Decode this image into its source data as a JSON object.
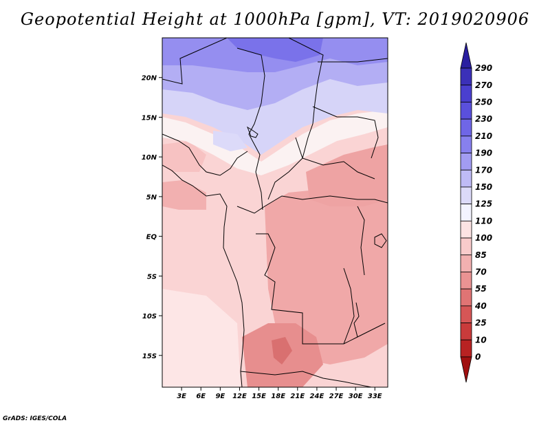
{
  "title": "Geopotential Height at 1000hPa [gpm], VT: 2019020906",
  "credit": "GrADS: IGES/COLA",
  "map": {
    "region": "Central Africa",
    "lon_range": [
      0,
      35
    ],
    "lat_range": [
      -19,
      25
    ],
    "lon_ticks": [
      "3E",
      "6E",
      "9E",
      "12E",
      "15E",
      "18E",
      "21E",
      "24E",
      "27E",
      "30E",
      "33E"
    ],
    "lat_ticks": [
      "20N",
      "15N",
      "10N",
      "5N",
      "EQ",
      "5S",
      "10S",
      "15S"
    ]
  },
  "colorbar": {
    "levels": [
      "290",
      "270",
      "250",
      "230",
      "210",
      "190",
      "170",
      "150",
      "125",
      "110",
      "100",
      "85",
      "70",
      "55",
      "40",
      "25",
      "10",
      "0"
    ],
    "colors": [
      "#2a1fa0",
      "#3b30b8",
      "#4a3fcf",
      "#5a50dc",
      "#6f66e6",
      "#8780ee",
      "#a29cf2",
      "#bfbbf6",
      "#dcdaf9",
      "#f3f3ff",
      "#fde3e3",
      "#f9cbcb",
      "#f2b0b0",
      "#ea9393",
      "#e07474",
      "#d65656",
      "#c93b3b",
      "#b82222",
      "#a01010"
    ]
  },
  "chart_data": {
    "type": "heatmap",
    "title": "Geopotential Height at 1000hPa [gpm], VT: 2019020906",
    "variable": "Geopotential Height at 1000hPa",
    "units": "gpm",
    "valid_time": "2019020906",
    "x": [
      "3E",
      "6E",
      "9E",
      "12E",
      "15E",
      "18E",
      "21E",
      "24E",
      "27E",
      "30E",
      "33E"
    ],
    "y": [
      "20N",
      "15N",
      "10N",
      "5N",
      "EQ",
      "5S",
      "10S",
      "15S"
    ],
    "contour_levels": [
      0,
      10,
      25,
      40,
      55,
      70,
      85,
      100,
      110,
      125,
      150,
      170,
      190,
      210,
      230,
      250,
      270,
      290
    ]
  }
}
